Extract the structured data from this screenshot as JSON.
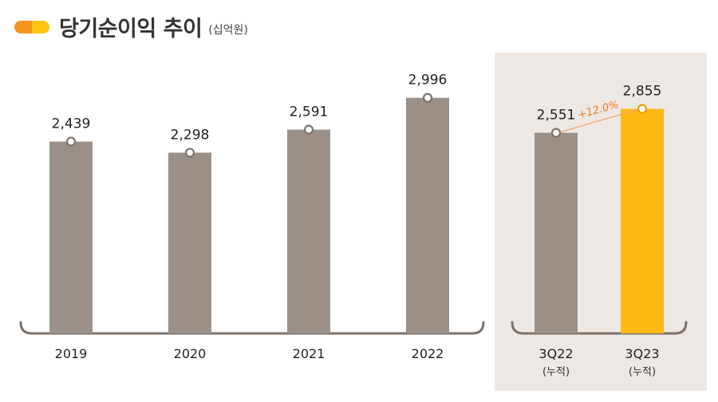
{
  "title": "당기순이익 추이",
  "unit": "(십억원)",
  "colors": {
    "bar_default": "#9a9087",
    "bar_highlight": "#fdb913",
    "panel_bg": "#ede8e3",
    "axis": "#7d7269",
    "growth_line": "#f5a66b",
    "growth_text": "#f07c23"
  },
  "chart_data": [
    {
      "type": "bar",
      "categories": [
        "2019",
        "2020",
        "2021",
        "2022"
      ],
      "values": [
        2439,
        2298,
        2591,
        2996
      ],
      "value_labels": [
        "2,439",
        "2,298",
        "2,591",
        "2,996"
      ],
      "title": "",
      "xlabel": "",
      "ylabel": "",
      "grid": false
    },
    {
      "type": "bar",
      "categories": [
        "3Q22",
        "3Q23"
      ],
      "category_notes": [
        "(누적)",
        "(누적)"
      ],
      "values": [
        2551,
        2855
      ],
      "value_labels": [
        "2,551",
        "2,855"
      ],
      "highlight_index": 1,
      "annotation": "+12.0%",
      "title": "",
      "xlabel": "",
      "ylabel": "",
      "grid": false
    }
  ]
}
